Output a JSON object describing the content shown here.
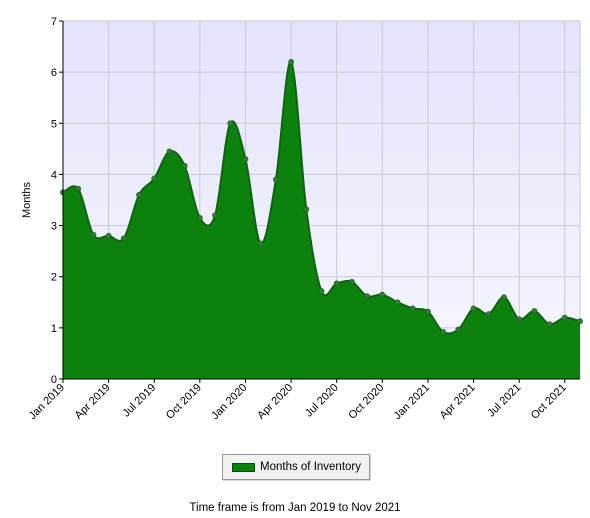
{
  "chart_data": {
    "type": "area",
    "ylabel": "Months",
    "ylim": [
      0,
      7
    ],
    "yticks": [
      "0",
      "1",
      "2",
      "3",
      "4",
      "5",
      "6",
      "7"
    ],
    "xtick_labels": [
      "Jan 2019",
      "Apr 2019",
      "Jul 2019",
      "Oct 2019",
      "Jan 2020",
      "Apr 2020",
      "Jul 2020",
      "Oct 2020",
      "Jan 2021",
      "Apr 2021",
      "Jul 2021",
      "Oct 2021"
    ],
    "grid": true,
    "legend_position": "bottom-center",
    "colors": {
      "fill": "#0b820b",
      "line": "#136113",
      "point": "#2e7d32"
    },
    "series": [
      {
        "name": "Months of Inventory",
        "x": [
          "Jan 2019",
          "Feb 2019",
          "Mar 2019",
          "Apr 2019",
          "May 2019",
          "Jun 2019",
          "Jul 2019",
          "Aug 2019",
          "Sep 2019",
          "Oct 2019",
          "Nov 2019",
          "Dec 2019",
          "Jan 2020",
          "Feb 2020",
          "Mar 2020",
          "Apr 2020",
          "May 2020",
          "Jun 2020",
          "Jul 2020",
          "Aug 2020",
          "Sep 2020",
          "Oct 2020",
          "Nov 2020",
          "Dec 2020",
          "Jan 2021",
          "Feb 2021",
          "Mar 2021",
          "Apr 2021",
          "May 2021",
          "Jun 2021",
          "Jul 2021",
          "Aug 2021",
          "Sep 2021",
          "Oct 2021",
          "Nov 2021"
        ],
        "values": [
          3.65,
          3.72,
          2.82,
          2.8,
          2.75,
          3.6,
          3.92,
          4.45,
          4.17,
          3.15,
          3.2,
          5.0,
          4.3,
          2.65,
          3.9,
          6.2,
          3.32,
          1.72,
          1.87,
          1.9,
          1.62,
          1.65,
          1.5,
          1.38,
          1.32,
          0.92,
          0.97,
          1.38,
          1.27,
          1.6,
          1.17,
          1.33,
          1.07,
          1.2,
          1.13
        ]
      }
    ]
  },
  "legend": {
    "label": "Months of Inventory"
  },
  "footer": {
    "text": "Time frame is from Jan 2019 to Nov 2021"
  }
}
